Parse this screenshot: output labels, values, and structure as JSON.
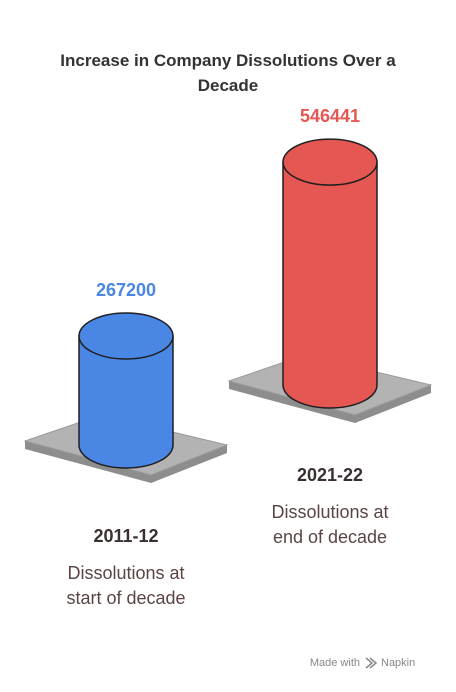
{
  "chart_data": {
    "type": "bar",
    "title": "Increase in Company Dissolutions Over a Decade",
    "categories": [
      "2011-12",
      "2021-22"
    ],
    "values": [
      267200,
      546441
    ],
    "colors": [
      "#4a86e3",
      "#e45753"
    ],
    "descriptions": [
      [
        "Dissolutions at",
        "start of decade"
      ],
      [
        "Dissolutions at",
        "end of decade"
      ]
    ]
  },
  "footer": {
    "prefix": "Made with",
    "brand": "Napkin"
  }
}
